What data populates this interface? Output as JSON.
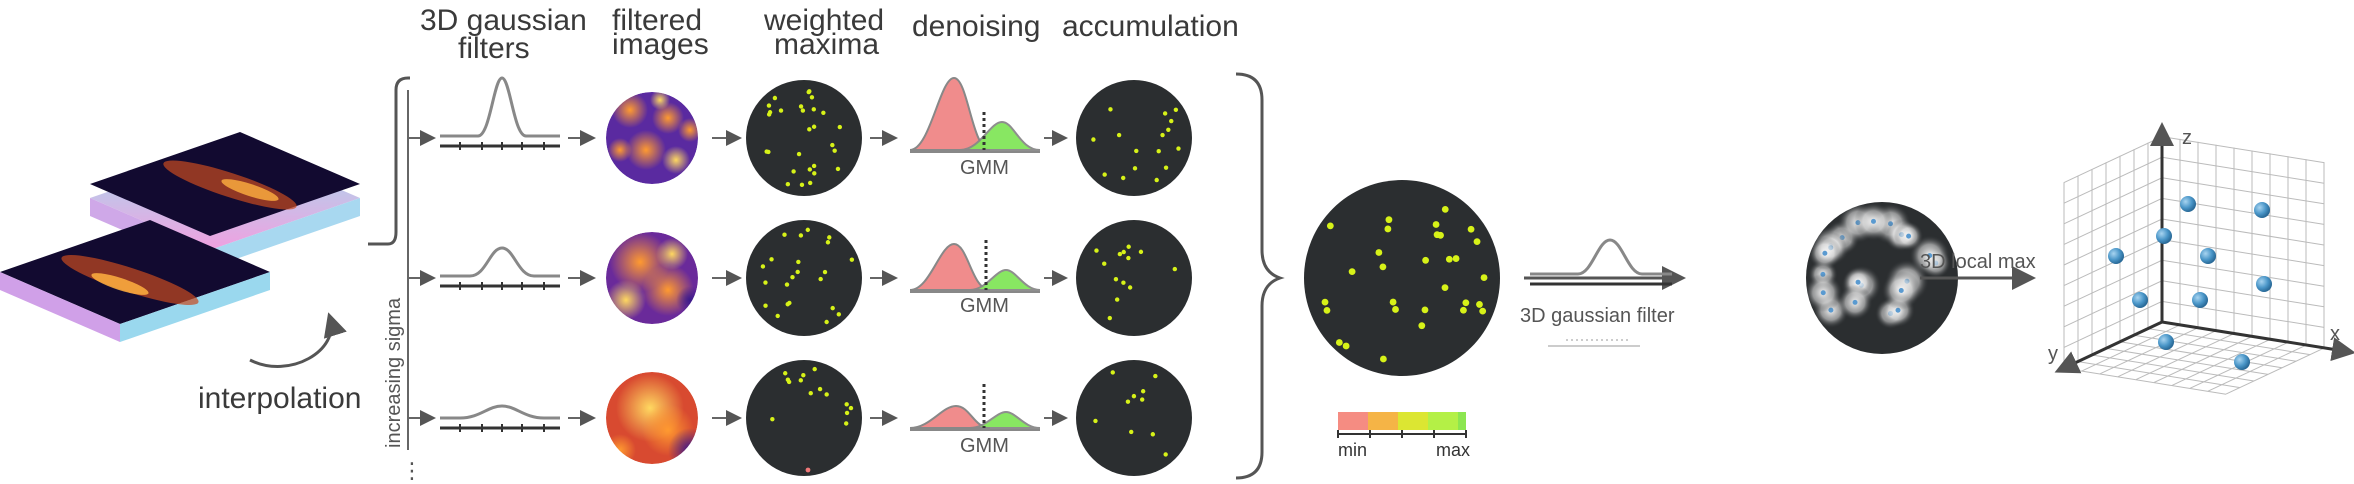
{
  "headers": {
    "filters": [
      "3D gaussian",
      "filters"
    ],
    "filtered": [
      "filtered",
      "images"
    ],
    "weighted": [
      "weighted",
      "maxima"
    ],
    "denoising": "denoising",
    "accumulation": "accumulation"
  },
  "labels": {
    "interpolation": "interpolation",
    "increasing_sigma": "increasing sigma",
    "gmm": "GMM",
    "gaussian_filter": "3D gaussian filter",
    "local_max": "3D local max",
    "legend_min": "min",
    "legend_max": "max",
    "axis_x": "x",
    "axis_y": "y",
    "axis_z": "z",
    "ellipsis": "⋮"
  },
  "colors": {
    "disc": "#2b2e30",
    "dot": "#d7f218",
    "dot_red": "#f07878",
    "gmm_red": "#f08c8c",
    "gmm_green": "#82e65a",
    "legend": [
      "#f58c82",
      "#f5b446",
      "#dce632",
      "#b4f046",
      "#8ce650"
    ],
    "sphere": "#4a96c8",
    "arrow": "#555555"
  }
}
